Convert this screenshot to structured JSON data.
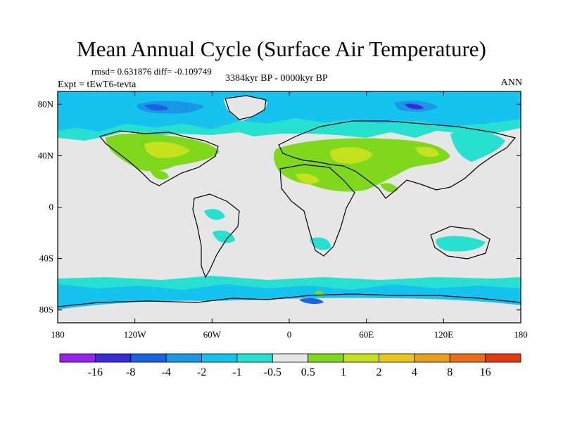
{
  "title": "Mean Annual Cycle (Surface Air Temperature)",
  "stats": "rmsd= 0.631876  diff= -0.109749",
  "experiment": "Expt = tEwT6-tevta",
  "period": "3384kyr BP - 0000kyr BP",
  "season": "ANN",
  "map": {
    "lon_range": [
      -180,
      180
    ],
    "lat_range": [
      -90,
      90
    ],
    "lat_ticks": [
      {
        "value": 80,
        "label": "80N"
      },
      {
        "value": 40,
        "label": "40N"
      },
      {
        "value": 0,
        "label": "0"
      },
      {
        "value": -40,
        "label": "40S"
      },
      {
        "value": -80,
        "label": "80S"
      }
    ],
    "lon_ticks": [
      {
        "value": -180,
        "label": "180"
      },
      {
        "value": -120,
        "label": "120W"
      },
      {
        "value": -60,
        "label": "60W"
      },
      {
        "value": 0,
        "label": "0"
      },
      {
        "value": 60,
        "label": "60E"
      },
      {
        "value": 120,
        "label": "120E"
      },
      {
        "value": 180,
        "label": "180"
      }
    ]
  },
  "legend": {
    "colors": [
      "#9a22ee",
      "#3a2bd6",
      "#1a63e2",
      "#1b95e6",
      "#16c3ee",
      "#26e0d0",
      "#e6e6e6",
      "#7fd81b",
      "#c6e21d",
      "#e8c81e",
      "#e9a01c",
      "#e86d16",
      "#e03a10"
    ],
    "labels": [
      "-16",
      "-8",
      "-4",
      "-2",
      "-1",
      "-0.5",
      "0.5",
      "1",
      "2",
      "4",
      "8",
      "16"
    ]
  },
  "colors": {
    "neutral": "#e6e6e6",
    "cool_light": "#26e0d0",
    "cool": "#16c3ee",
    "cool_mid": "#1b95e6",
    "cool_strong": "#1a63e2",
    "cool_deep": "#3a2bd6",
    "warm_light": "#7fd81b",
    "warm": "#c6e21d"
  }
}
